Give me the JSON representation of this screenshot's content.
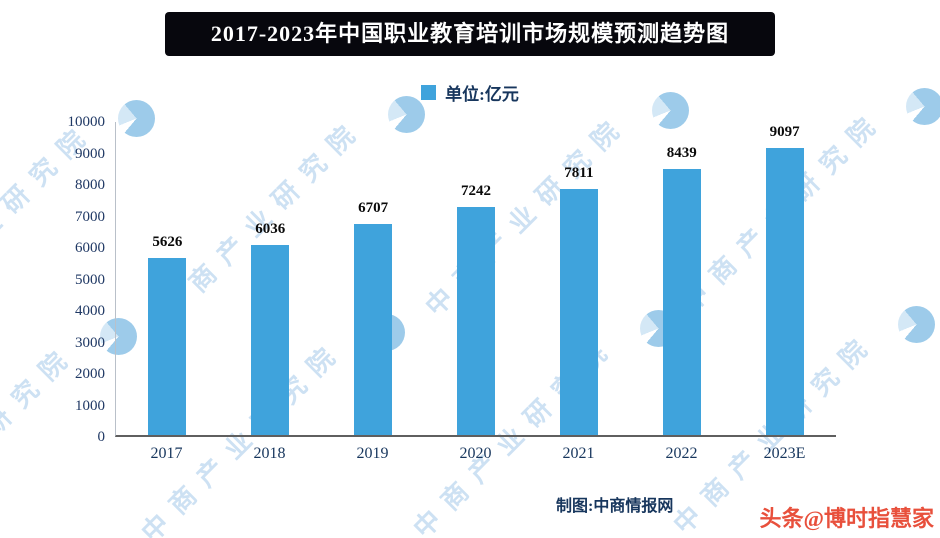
{
  "chart_data": {
    "type": "bar",
    "title": "2017-2023年中国职业教育培训市场规模预测趋势图",
    "categories": [
      "2017",
      "2018",
      "2019",
      "2020",
      "2021",
      "2022",
      "2023E"
    ],
    "values": [
      5626,
      6036,
      6707,
      7242,
      7811,
      8439,
      9097
    ],
    "legend_label": "单位:亿元",
    "xlabel": "",
    "ylabel": "",
    "ylim": [
      0,
      10000
    ],
    "yticks": [
      0,
      1000,
      2000,
      3000,
      4000,
      5000,
      6000,
      7000,
      8000,
      9000,
      10000
    ],
    "bar_color": "#3FA3DC",
    "grid": false,
    "legend_position": "top-center"
  },
  "footer": {
    "credit": "制图:中商情报网",
    "byline": "头条@博时指慧家"
  },
  "watermark": {
    "text": "中商产业研究院",
    "logo": "pie-chart-logo",
    "text_color": "#CDE1F3"
  },
  "colors": {
    "bar": "#3FA3DC",
    "axis_text": "#1F3864",
    "title_bg": "#07070D",
    "title_text": "#FFFFFF",
    "byline_red": "#E8503C"
  }
}
